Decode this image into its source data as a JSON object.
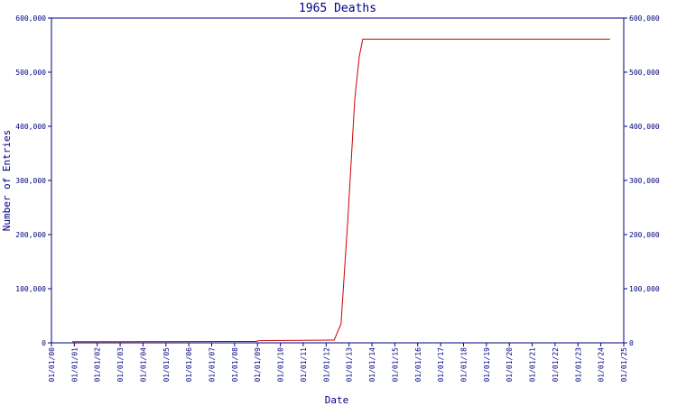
{
  "chart_data": {
    "type": "line",
    "title": "1965 Deaths",
    "x_label": "Date",
    "y_label": "Number of Entries",
    "series": [
      {
        "name": "1965 Deaths",
        "color": "#cc0000",
        "x": [
          0.9,
          8.95,
          9.05,
          12.15,
          12.35,
          12.65,
          12.95,
          13.25,
          13.45,
          13.6,
          24.4
        ],
        "values": [
          2000,
          2500,
          4000,
          5000,
          5000,
          35000,
          230000,
          450000,
          530000,
          561000,
          561000
        ]
      }
    ],
    "xlim": [
      0,
      25
    ],
    "xticks": [
      {
        "value": 0,
        "label": "01/01/00"
      },
      {
        "value": 1,
        "label": "01/01/01"
      },
      {
        "value": 2,
        "label": "01/01/02"
      },
      {
        "value": 3,
        "label": "01/01/03"
      },
      {
        "value": 4,
        "label": "01/01/04"
      },
      {
        "value": 5,
        "label": "01/01/05"
      },
      {
        "value": 6,
        "label": "01/01/06"
      },
      {
        "value": 7,
        "label": "01/01/07"
      },
      {
        "value": 8,
        "label": "01/01/08"
      },
      {
        "value": 9,
        "label": "01/01/09"
      },
      {
        "value": 10,
        "label": "01/01/10"
      },
      {
        "value": 11,
        "label": "01/01/11"
      },
      {
        "value": 12,
        "label": "01/01/12"
      },
      {
        "value": 13,
        "label": "01/01/13"
      },
      {
        "value": 14,
        "label": "01/01/14"
      },
      {
        "value": 15,
        "label": "01/01/15"
      },
      {
        "value": 16,
        "label": "01/01/16"
      },
      {
        "value": 17,
        "label": "01/01/17"
      },
      {
        "value": 18,
        "label": "01/01/18"
      },
      {
        "value": 19,
        "label": "01/01/19"
      },
      {
        "value": 20,
        "label": "01/01/20"
      },
      {
        "value": 21,
        "label": "01/01/21"
      },
      {
        "value": 22,
        "label": "01/01/22"
      },
      {
        "value": 23,
        "label": "01/01/23"
      },
      {
        "value": 24,
        "label": "01/01/24"
      },
      {
        "value": 25,
        "label": "01/01/25"
      }
    ],
    "ylim": [
      0,
      600000
    ],
    "yticks": [
      0,
      {
        "value": 100000,
        "label": "100,000"
      },
      {
        "value": 200000,
        "label": "200,000"
      },
      {
        "value": 300000,
        "label": "300,000"
      },
      {
        "value": 400000,
        "label": "400,000"
      },
      {
        "value": 500000,
        "label": "500,000"
      },
      {
        "value": 600000,
        "label": "600,000"
      }
    ],
    "y2lim": [
      0,
      600000
    ],
    "y2ticks": [
      0,
      {
        "value": 100000,
        "label": "100,000"
      },
      {
        "value": 200000,
        "label": "200,000"
      },
      {
        "value": 300000,
        "label": "300,000"
      },
      {
        "value": 400000,
        "label": "400,000"
      },
      {
        "value": 500000,
        "label": "500,000"
      },
      {
        "value": 600000,
        "label": "600,000"
      }
    ],
    "axis_color": "#000080"
  }
}
